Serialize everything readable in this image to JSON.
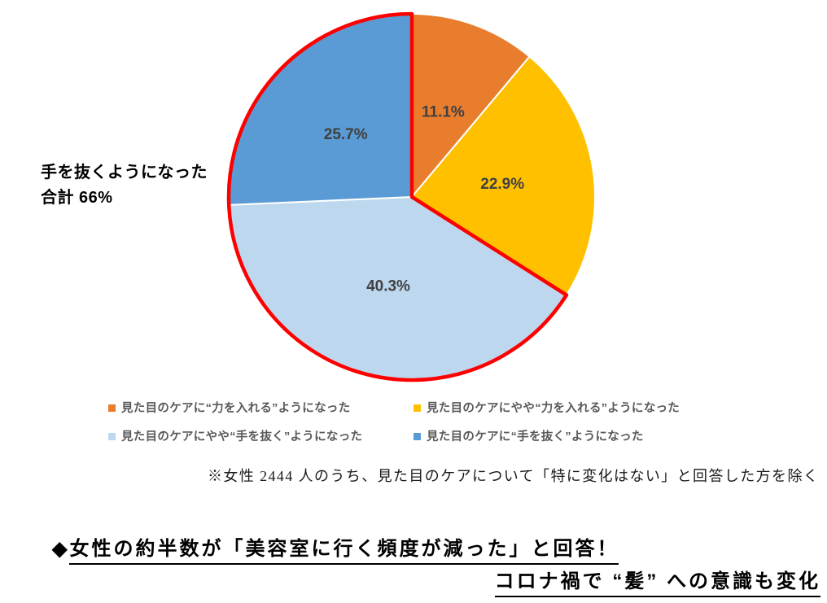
{
  "chart_data": {
    "type": "pie",
    "unit": "%",
    "direction": "clockwise",
    "start_angle_deg": 0,
    "legend_position": "bottom",
    "slices": [
      {
        "label": "見た目のケアに“力を入れる”ようになった",
        "value": 11.1,
        "display": "11.1%",
        "color": "#E87D2E"
      },
      {
        "label": "見た目のケアにやや“力を入れる”ようになった",
        "value": 22.9,
        "display": "22.9%",
        "color": "#FFC000"
      },
      {
        "label": "見た目のケアにやや“手を抜く”ようになった",
        "value": 40.3,
        "display": "40.3%",
        "color": "#BDD7EE"
      },
      {
        "label": "見た目のケアに“手を抜く”ようになった",
        "value": 25.7,
        "display": "25.7%",
        "color": "#5B9BD5"
      }
    ],
    "label_color": "#404040",
    "slice_border_color": "#FFFFFF",
    "highlight": {
      "slice_indices": [
        2,
        3
      ],
      "outline_color": "#FF0000"
    }
  },
  "annotation": {
    "line1": "手を抜くようになった",
    "line2": "合計 66%"
  },
  "footnote": {
    "text": "※女性 2444 人のうち、見た目のケアについて「特に変化はない」と回答した方を除く"
  },
  "headline": {
    "bullet": "◆",
    "line1": "女性の約半数が「美容室に行く頻度が減った」と回答！",
    "line2": "コロナ禍で “髪” への意識も変化"
  }
}
